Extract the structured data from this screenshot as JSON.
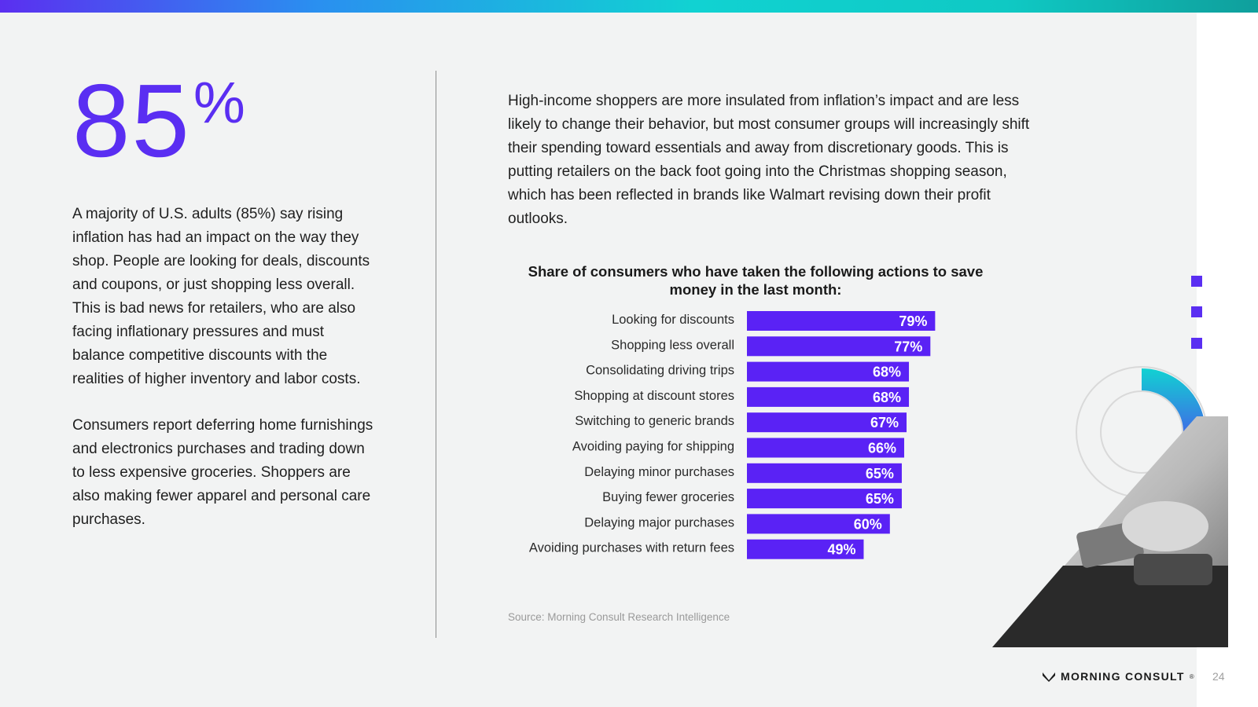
{
  "stat": {
    "number": "85",
    "symbol": "%"
  },
  "left_paragraphs": [
    "A majority of U.S. adults (85%) say rising inflation has had an impact on the way they shop. People are looking for deals, discounts and coupons, or just shopping less overall. This is bad news for retailers, who are also facing inflationary pressures and must balance competitive discounts with the realities of higher inventory and labor costs.",
    "Consumers report deferring home furnishings and electronics purchases and trading down to less expensive groceries. Shoppers are also making fewer apparel and personal care purchases."
  ],
  "intro": "High-income shoppers are more insulated from inflation’s impact and are less likely to change their behavior, but most consumer groups will increasingly shift their spending toward essentials and away from discretionary goods. This is putting retailers on the back foot going into the Christmas shopping season, which has been reflected in brands like Walmart revising down their profit outlooks.",
  "chart_data": {
    "type": "bar",
    "orientation": "horizontal",
    "title": "Share of consumers who have taken the following actions to save money in the last month:",
    "categories": [
      "Looking for discounts",
      "Shopping less overall",
      "Consolidating driving trips",
      "Shopping at discount stores",
      "Switching to generic brands",
      "Avoiding paying for shipping",
      "Delaying minor purchases",
      "Buying fewer groceries",
      "Delaying major purchases",
      "Avoiding purchases with return fees"
    ],
    "values": [
      79,
      77,
      68,
      68,
      67,
      66,
      65,
      65,
      60,
      49
    ],
    "value_labels": [
      "79%",
      "77%",
      "68%",
      "68%",
      "67%",
      "66%",
      "65%",
      "65%",
      "60%",
      "49%"
    ],
    "unit": "%",
    "bar_color": "#5a22f5",
    "xlim": [
      0,
      100
    ],
    "grid": false,
    "legend": "none"
  },
  "source": "Source: Morning Consult Research Intelligence",
  "brand": {
    "name": "MORNING CONSULT",
    "mark": "®"
  },
  "page_number": "24",
  "colors": {
    "accent": "#5a2ef2",
    "teal": "#11d2d2"
  },
  "decor": {
    "donut_fraction": 0.36
  }
}
